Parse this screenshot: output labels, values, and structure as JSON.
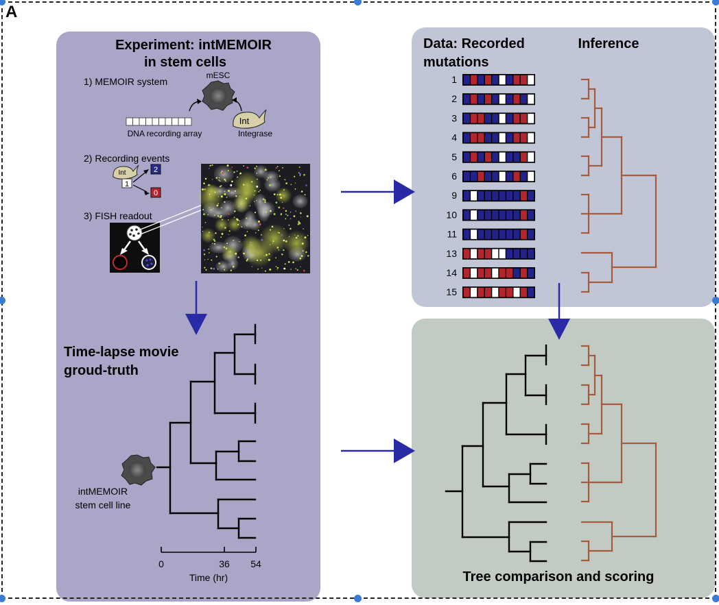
{
  "panel_letter": "A",
  "experiment": {
    "title_line1": "Experiment: intMEMOIR",
    "title_line2": "in stem cells",
    "step1": "1) MEMOIR system",
    "mesc": "mESC",
    "dna_array": "DNA recording array",
    "int_label": "Int",
    "integrase": "Integrase",
    "step2": "2) Recording events",
    "state_start": "1",
    "state_a": "2",
    "state_b": "0",
    "step3": "3) FISH readout"
  },
  "groundtruth": {
    "title_line1": "Time-lapse movie",
    "title_line2": "groud-truth",
    "cell_line_1": "intMEMOIR",
    "cell_line_2": "stem cell line",
    "axis_ticks": [
      "0",
      "36",
      "54"
    ],
    "axis_label": "Time (hr)"
  },
  "data_panel": {
    "title_line1": "Data: Recorded",
    "title_line2": "mutations",
    "inference": "Inference",
    "rows": [
      {
        "label": "1",
        "states": [
          "b",
          "r",
          "b",
          "r",
          "b",
          "w",
          "b",
          "r",
          "r",
          "w"
        ]
      },
      {
        "label": "2",
        "states": [
          "b",
          "r",
          "b",
          "r",
          "b",
          "w",
          "b",
          "r",
          "b",
          "w"
        ]
      },
      {
        "label": "3",
        "states": [
          "b",
          "r",
          "r",
          "b",
          "b",
          "w",
          "b",
          "r",
          "r",
          "w"
        ]
      },
      {
        "label": "4",
        "states": [
          "b",
          "r",
          "r",
          "b",
          "b",
          "w",
          "b",
          "r",
          "r",
          "w"
        ]
      },
      {
        "label": "5",
        "states": [
          "b",
          "r",
          "b",
          "r",
          "b",
          "w",
          "b",
          "b",
          "r",
          "w"
        ]
      },
      {
        "label": "6",
        "states": [
          "b",
          "b",
          "r",
          "b",
          "b",
          "w",
          "b",
          "r",
          "b",
          "w"
        ]
      },
      {
        "label": "9",
        "states": [
          "b",
          "w",
          "b",
          "b",
          "b",
          "b",
          "b",
          "b",
          "r",
          "b"
        ]
      },
      {
        "label": "10",
        "states": [
          "b",
          "w",
          "b",
          "b",
          "b",
          "b",
          "b",
          "b",
          "r",
          "b"
        ]
      },
      {
        "label": "11",
        "states": [
          "b",
          "w",
          "b",
          "b",
          "b",
          "b",
          "b",
          "b",
          "r",
          "b"
        ]
      },
      {
        "label": "13",
        "states": [
          "r",
          "w",
          "r",
          "r",
          "w",
          "w",
          "b",
          "b",
          "b",
          "b"
        ]
      },
      {
        "label": "14",
        "states": [
          "r",
          "w",
          "r",
          "r",
          "w",
          "r",
          "r",
          "b",
          "r",
          "b"
        ]
      },
      {
        "label": "15",
        "states": [
          "r",
          "w",
          "r",
          "r",
          "w",
          "r",
          "r",
          "w",
          "r",
          "b"
        ]
      }
    ]
  },
  "comparison": {
    "title": "Tree comparison and scoring"
  },
  "colors": {
    "panel_experiment": "#a9a6c8",
    "panel_data": "#c1c6d6",
    "panel_compare": "#c1cbc3",
    "arrow": "#2a2aa6",
    "inferred_tree": "#a7593b",
    "mut_blue": "#22228a",
    "mut_red": "#b3262d"
  }
}
